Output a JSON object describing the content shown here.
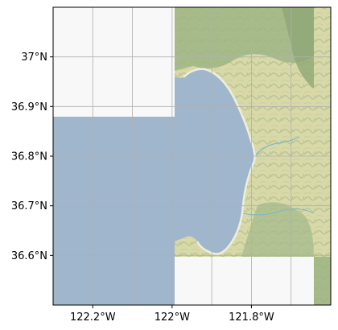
{
  "map": {
    "extent": {
      "lon_min": -122.3,
      "lon_max": -121.6,
      "lat_min": 36.5,
      "lat_max": 37.1
    },
    "grid": true,
    "gridlines": {
      "lon": [
        -122.2,
        -122.1,
        -122.0,
        -121.9,
        -121.8,
        -121.7
      ],
      "lat": [
        37.0,
        36.9,
        36.8,
        36.7,
        36.6
      ]
    },
    "x_ticks": [
      {
        "value": -122.2,
        "label": "122.2°W"
      },
      {
        "value": -122.0,
        "label": "122°W"
      },
      {
        "value": -121.8,
        "label": "121.8°W"
      }
    ],
    "y_ticks": [
      {
        "value": 37.0,
        "label": "37°N"
      },
      {
        "value": 36.9,
        "label": "36.9°N"
      },
      {
        "value": 36.8,
        "label": "36.8°N"
      },
      {
        "value": 36.7,
        "label": "36.7°N"
      },
      {
        "value": 36.6,
        "label": "36.6°N"
      }
    ],
    "colors": {
      "ocean": "#a0b6cc",
      "land": "#dcdcae",
      "forest": "#9eb585",
      "missing_tile": "#f8f8f8",
      "grid": "#b0b0b0",
      "frame": "#000000"
    }
  }
}
